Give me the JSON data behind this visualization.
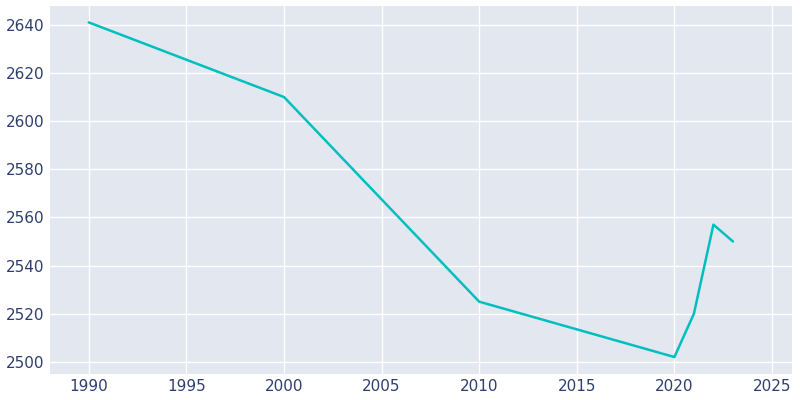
{
  "years": [
    1990,
    2000,
    2010,
    2020,
    2021,
    2022,
    2023
  ],
  "population": [
    2641,
    2610,
    2525,
    2502,
    2520,
    2557,
    2550
  ],
  "line_color": "#00bfbf",
  "axes_background_color": "#e3e8f0",
  "figure_background_color": "#ffffff",
  "grid_color": "#ffffff",
  "text_color": "#2e3f6e",
  "xlim": [
    1988,
    2026
  ],
  "ylim": [
    2495,
    2648
  ],
  "xticks": [
    1990,
    1995,
    2000,
    2005,
    2010,
    2015,
    2020,
    2025
  ],
  "yticks": [
    2500,
    2520,
    2540,
    2560,
    2580,
    2600,
    2620,
    2640
  ],
  "linewidth": 1.8
}
